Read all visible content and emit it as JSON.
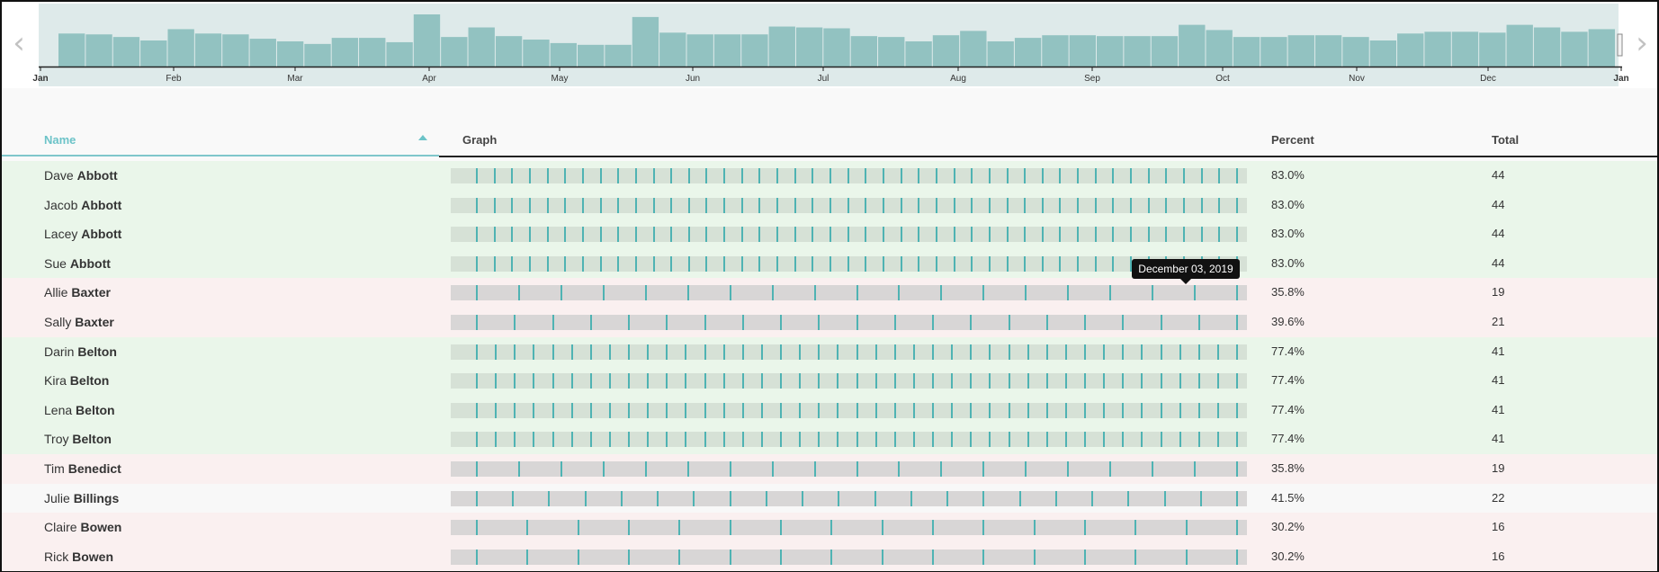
{
  "timeline": {
    "months": [
      "Jan",
      "Feb",
      "Mar",
      "Apr",
      "May",
      "Jun",
      "Jul",
      "Aug",
      "Sep",
      "Oct",
      "Nov",
      "Dec",
      "Jan"
    ],
    "histogram": [
      38,
      37,
      34,
      30,
      43,
      38,
      37,
      32,
      29,
      26,
      33,
      33,
      28,
      60,
      34,
      45,
      35,
      31,
      27,
      25,
      25,
      57,
      39,
      37,
      37,
      37,
      46,
      45,
      44,
      35,
      34,
      29,
      36,
      41,
      29,
      33,
      36,
      36,
      35,
      35,
      35,
      48,
      42,
      34,
      34,
      36,
      36,
      34,
      30,
      38,
      40,
      40,
      39,
      48,
      45,
      40,
      43
    ],
    "bar_color": "#92c2c1",
    "band_color": "#deeaea",
    "prev_icon": "chevron-left",
    "next_icon": "chevron-right"
  },
  "table": {
    "headers": {
      "name": "Name",
      "graph": "Graph",
      "percent": "Percent",
      "total": "Total"
    },
    "sort_icon": "sort-ascending-triangle",
    "sorted_by": "Name",
    "rows": [
      {
        "first": "Dave",
        "last": "Abbott",
        "percent": "83.0%",
        "total": "44",
        "status": "good"
      },
      {
        "first": "Jacob",
        "last": "Abbott",
        "percent": "83.0%",
        "total": "44",
        "status": "good"
      },
      {
        "first": "Lacey",
        "last": "Abbott",
        "percent": "83.0%",
        "total": "44",
        "status": "good"
      },
      {
        "first": "Sue",
        "last": "Abbott",
        "percent": "83.0%",
        "total": "44",
        "status": "good"
      },
      {
        "first": "Allie",
        "last": "Baxter",
        "percent": "35.8%",
        "total": "19",
        "status": "bad"
      },
      {
        "first": "Sally",
        "last": "Baxter",
        "percent": "39.6%",
        "total": "21",
        "status": "bad"
      },
      {
        "first": "Darin",
        "last": "Belton",
        "percent": "77.4%",
        "total": "41",
        "status": "good"
      },
      {
        "first": "Kira",
        "last": "Belton",
        "percent": "77.4%",
        "total": "41",
        "status": "good"
      },
      {
        "first": "Lena",
        "last": "Belton",
        "percent": "77.4%",
        "total": "41",
        "status": "good"
      },
      {
        "first": "Troy",
        "last": "Belton",
        "percent": "77.4%",
        "total": "41",
        "status": "good"
      },
      {
        "first": "Tim",
        "last": "Benedict",
        "percent": "35.8%",
        "total": "19",
        "status": "bad"
      },
      {
        "first": "Julie",
        "last": "Billings",
        "percent": "41.5%",
        "total": "22",
        "status": "mid"
      },
      {
        "first": "Claire",
        "last": "Bowen",
        "percent": "30.2%",
        "total": "16",
        "status": "bad"
      },
      {
        "first": "Rick",
        "last": "Bowen",
        "percent": "30.2%",
        "total": "16",
        "status": "bad"
      }
    ]
  },
  "tooltip": {
    "text": "December 03, 2019"
  },
  "colors": {
    "accent": "#6cc3c8",
    "tick": "#4fb3b3",
    "good_row": "#eaf6ea",
    "bad_row": "#faf0f0",
    "graph_good": "#d6e1d6",
    "graph_bad": "#d8d6d6"
  }
}
